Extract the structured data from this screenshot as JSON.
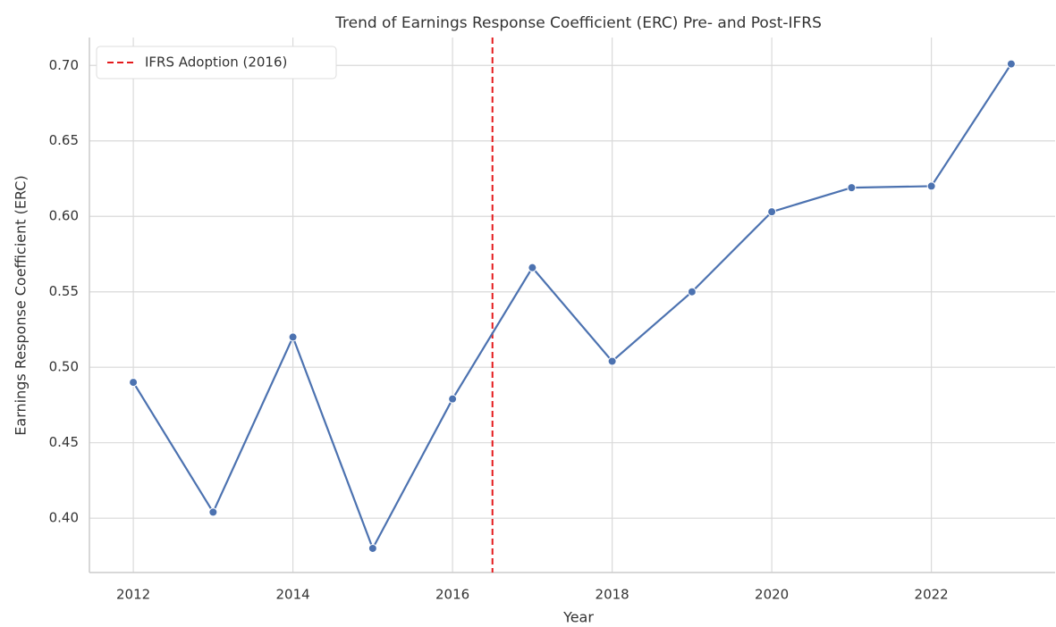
{
  "chart_data": {
    "type": "line",
    "title": "Trend of Earnings Response Coefficient (ERC) Pre- and Post-IFRS",
    "xlabel": "Year",
    "ylabel": "Earnings Response Coefficient (ERC)",
    "x": [
      2012,
      2013,
      2014,
      2015,
      2016,
      2017,
      2018,
      2019,
      2020,
      2021,
      2022,
      2023
    ],
    "series": [
      {
        "name": "ERC",
        "color": "#4c72b0",
        "values": [
          0.49,
          0.404,
          0.52,
          0.38,
          0.479,
          0.566,
          0.504,
          0.55,
          0.603,
          0.619,
          0.62,
          0.701
        ]
      }
    ],
    "vline": {
      "x": 2016.5,
      "label": "IFRS Adoption (2016)",
      "color": "#e41a1c"
    },
    "xlim": [
      2011.45,
      2023.55
    ],
    "xticks": [
      2012,
      2014,
      2016,
      2018,
      2020,
      2022
    ],
    "ylim": [
      0.364,
      0.7185
    ],
    "yticks": [
      {
        "value": 0.4,
        "label": "0.40"
      },
      {
        "value": 0.45,
        "label": "0.45"
      },
      {
        "value": 0.5,
        "label": "0.50"
      },
      {
        "value": 0.55,
        "label": "0.55"
      },
      {
        "value": 0.6,
        "label": "0.60"
      },
      {
        "value": 0.65,
        "label": "0.65"
      },
      {
        "value": 0.7,
        "label": "0.70"
      }
    ],
    "grid": true,
    "legend": "upper left"
  }
}
